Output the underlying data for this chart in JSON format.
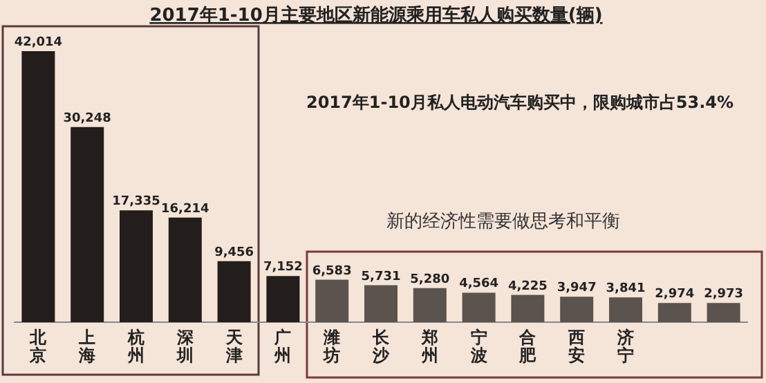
{
  "chart_data": {
    "type": "bar",
    "title": "2017年1-10月主要地区新能源乘用车私人购买数量(辆)",
    "categories": [
      "北京",
      "上海",
      "杭州",
      "深圳",
      "天津",
      "广州",
      "潍坊",
      "长沙",
      "郑州",
      "宁波",
      "合肥",
      "西安",
      "济宁",
      null,
      null
    ],
    "values": [
      42014,
      30248,
      17335,
      16214,
      9456,
      7152,
      6583,
      5731,
      5280,
      4564,
      4225,
      3947,
      3841,
      2974,
      2973
    ],
    "colors": [
      "#231e1b",
      "#231e1b",
      "#231e1b",
      "#231e1b",
      "#231e1b",
      "#231e1b",
      "#5b534d",
      "#5b534d",
      "#5b534d",
      "#5b534d",
      "#5b534d",
      "#5b534d",
      "#5b534d",
      "#5b534d",
      "#5b534d"
    ],
    "value_labels": [
      "42,014",
      "30,248",
      "17,335",
      "16,214",
      "9,456",
      "7,152",
      "6,583",
      "5,731",
      "5,280",
      "4,564",
      "4,225",
      "3,947",
      "3,841",
      "2,974",
      "2,973"
    ],
    "annotations": [
      "2017年1-10月私人电动汽车购买中，限购城市占53.4%",
      "新的经济性需要做思考和平衡"
    ]
  }
}
